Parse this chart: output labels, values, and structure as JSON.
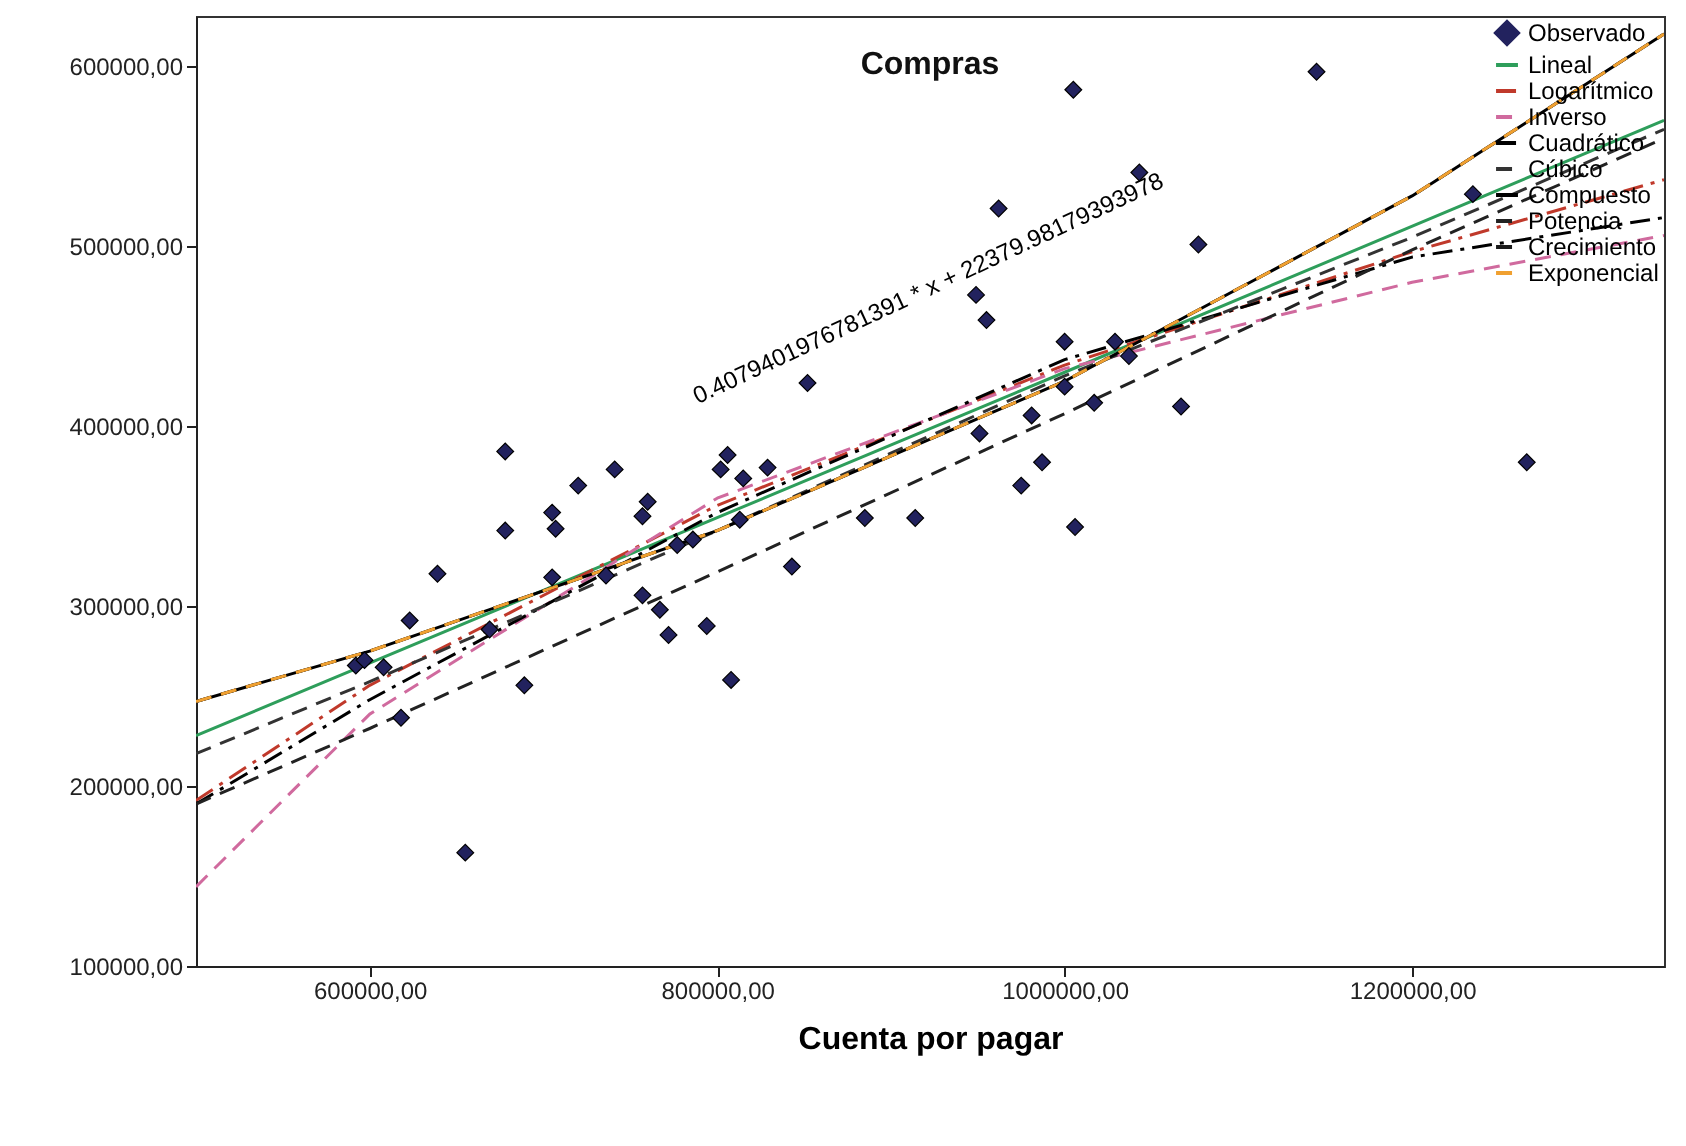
{
  "chart_data": {
    "type": "scatter",
    "title": "Compras",
    "xlabel": "Cuenta por pagar",
    "annotations": [
      "0.4079401976781391 * x + 22379.98179393978"
    ],
    "xlim": [
      500000,
      1345000
    ],
    "ylim": [
      100000,
      628000
    ],
    "xticks": [
      {
        "value": 600000,
        "label": "600000,00"
      },
      {
        "value": 800000,
        "label": "800000,00"
      },
      {
        "value": 1000000,
        "label": "1000000,00"
      },
      {
        "value": 1200000,
        "label": "1200000,00"
      }
    ],
    "yticks": [
      {
        "value": 100000,
        "label": "100000,00"
      },
      {
        "value": 200000,
        "label": "200000,00"
      },
      {
        "value": 300000,
        "label": "300000,00"
      },
      {
        "value": 400000,
        "label": "400000,00"
      },
      {
        "value": 500000,
        "label": "500000,00"
      },
      {
        "value": 600000,
        "label": "600000,00"
      }
    ],
    "legend": "top right",
    "grid": false,
    "series": [
      {
        "name": "Observado",
        "marker": "diamond",
        "color": "#22225e",
        "x": [
          655000,
          618000,
          623000,
          639000,
          669000,
          678000,
          678000,
          689000,
          705000,
          707000,
          705000,
          720000,
          736000,
          741000,
          757000,
          760000,
          757000,
          767000,
          772000,
          777000,
          786000,
          794000,
          802000,
          806000,
          808000,
          813000,
          815000,
          829000,
          843000,
          852000,
          885000,
          914000,
          949000,
          951000,
          955000,
          962000,
          975000,
          981000,
          987000,
          1000000,
          1000000,
          1005000,
          1006000,
          1017000,
          1029000,
          1037000,
          1043000,
          1067000,
          1077000,
          1145000,
          1235000,
          1266000,
          592000,
          597000,
          608000
        ],
        "values": [
          163000,
          238000,
          292000,
          318000,
          287000,
          386000,
          342000,
          256000,
          352000,
          343000,
          316000,
          367000,
          317000,
          376000,
          350000,
          358000,
          306000,
          298000,
          284000,
          334000,
          337000,
          289000,
          376000,
          384000,
          259000,
          348000,
          371000,
          377000,
          322000,
          424000,
          349000,
          349000,
          473000,
          396000,
          459000,
          521000,
          367000,
          406000,
          380000,
          447000,
          422000,
          587000,
          344000,
          413000,
          447000,
          439000,
          541000,
          411000,
          501000,
          597000,
          529000,
          380000,
          267000,
          270000,
          266000
        ]
      },
      {
        "name": "Lineal",
        "type": "line",
        "line_style": "solid",
        "color": "#2e9e5b",
        "x": [
          500000,
          1000000,
          1345000
        ],
        "values": [
          228000,
          430000,
          570000
        ]
      },
      {
        "name": "Logarítmico",
        "type": "line",
        "line_style": "dashdot",
        "color": "#c0392b",
        "x": [
          500000,
          600000,
          800000,
          1000000,
          1200000,
          1345000
        ],
        "values": [
          192000,
          256000,
          356000,
          434000,
          497000,
          537000
        ]
      },
      {
        "name": "Inverso",
        "type": "line",
        "line_style": "dashed",
        "color": "#d06a9e",
        "x": [
          500000,
          600000,
          800000,
          1000000,
          1200000,
          1345000
        ],
        "values": [
          144000,
          240000,
          360000,
          432000,
          480000,
          506000
        ]
      },
      {
        "name": "Cuadrático",
        "type": "line",
        "line_style": "dashdot",
        "color": "#000000",
        "x": [
          500000,
          600000,
          800000,
          1000000,
          1200000,
          1345000
        ],
        "values": [
          190000,
          248000,
          352000,
          437000,
          494000,
          516000
        ]
      },
      {
        "name": "Cúbico",
        "type": "line",
        "line_style": "dashed",
        "color": "#333333",
        "x": [
          500000,
          600000,
          800000,
          1000000,
          1200000,
          1345000
        ],
        "values": [
          218000,
          258000,
          342000,
          428000,
          505000,
          565000
        ]
      },
      {
        "name": "Compuesto",
        "type": "line",
        "line_style": "solid",
        "color": "#000000",
        "x": [
          500000,
          600000,
          800000,
          1000000,
          1200000,
          1345000
        ],
        "values": [
          247000,
          275000,
          342000,
          425000,
          528000,
          618000
        ]
      },
      {
        "name": "Potencia",
        "type": "line",
        "line_style": "dashed",
        "color": "#222222",
        "x": [
          500000,
          600000,
          800000,
          1000000,
          1200000,
          1345000
        ],
        "values": [
          190000,
          232000,
          319000,
          407000,
          498000,
          560000
        ]
      },
      {
        "name": "Crecimiento",
        "type": "line",
        "line_style": "dashed",
        "color": "#1a1a1a",
        "x": [
          500000,
          600000,
          800000,
          1000000,
          1200000,
          1345000
        ],
        "values": [
          247000,
          275000,
          342000,
          425000,
          528000,
          618000
        ]
      },
      {
        "name": "Exponencial",
        "type": "line",
        "line_style": "dashed",
        "color": "#f0a030",
        "x": [
          500000,
          600000,
          800000,
          1000000,
          1200000,
          1345000
        ],
        "values": [
          247000,
          275000,
          342000,
          425000,
          528000,
          618000
        ]
      }
    ]
  }
}
